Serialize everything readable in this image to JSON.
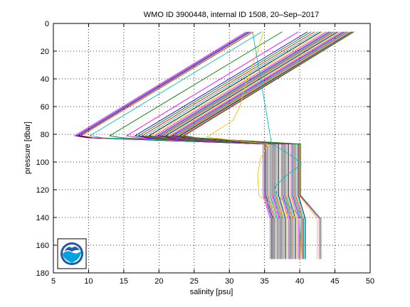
{
  "chart_data": {
    "type": "line",
    "title": "WMO ID 3900448, internal ID 1508, 20–Sep–2017",
    "xlabel": "salinity [psu]",
    "ylabel": "pressure [dbar]",
    "xlim": [
      5,
      50
    ],
    "ylim": [
      0,
      180
    ],
    "y_reversed": true,
    "grid": true,
    "xticks": [
      "5",
      "10",
      "15",
      "20",
      "25",
      "30",
      "35",
      "40",
      "45",
      "50"
    ],
    "yticks": [
      "0",
      "20",
      "40",
      "60",
      "80",
      "100",
      "120",
      "140",
      "160",
      "180"
    ],
    "logo": "noaa-logo",
    "series": [
      {
        "color": "#ff00ff",
        "points": [
          [
            32.4,
            6
          ],
          [
            8.0,
            81
          ],
          [
            9.8,
            82.5
          ],
          [
            34.8,
            87
          ],
          [
            34.8,
            124
          ],
          [
            35.8,
            141
          ],
          [
            35.8,
            170
          ]
        ]
      },
      {
        "color": "#0000ff",
        "points": [
          [
            32.7,
            6
          ],
          [
            8.3,
            81
          ],
          [
            10.1,
            82.5
          ],
          [
            35.0,
            87
          ],
          [
            35.0,
            124
          ],
          [
            36.0,
            141
          ],
          [
            36.0,
            170
          ]
        ]
      },
      {
        "color": "#000000",
        "points": [
          [
            33.0,
            6
          ],
          [
            8.6,
            81
          ],
          [
            10.4,
            82.5
          ],
          [
            35.2,
            87
          ],
          [
            35.2,
            124
          ],
          [
            36.2,
            141
          ],
          [
            36.2,
            170
          ]
        ]
      },
      {
        "color": "#ff0000",
        "points": [
          [
            33.4,
            6
          ],
          [
            8.9,
            81
          ],
          [
            10.7,
            82.5
          ],
          [
            35.4,
            87
          ],
          [
            35.4,
            124
          ],
          [
            36.4,
            141
          ],
          [
            36.4,
            170
          ]
        ]
      },
      {
        "color": "#00bfbf",
        "points": [
          [
            34.6,
            6
          ],
          [
            10.2,
            81
          ],
          [
            12.0,
            82.5
          ],
          [
            35.6,
            87
          ],
          [
            35.6,
            124
          ],
          [
            36.6,
            141
          ],
          [
            36.6,
            170
          ]
        ]
      },
      {
        "color": "#008000",
        "points": [
          [
            37.5,
            6
          ],
          [
            13.0,
            81
          ],
          [
            14.8,
            82.5
          ],
          [
            35.8,
            87
          ],
          [
            35.8,
            124
          ],
          [
            36.8,
            141
          ],
          [
            36.8,
            170
          ]
        ]
      },
      {
        "color": "#ff00ff",
        "points": [
          [
            39.8,
            6
          ],
          [
            15.4,
            81
          ],
          [
            17.2,
            82.5
          ],
          [
            36.0,
            87
          ],
          [
            36.0,
            124
          ],
          [
            37.0,
            141
          ],
          [
            37.0,
            170
          ]
        ]
      },
      {
        "color": "#0000ff",
        "points": [
          [
            41.1,
            6
          ],
          [
            16.6,
            81
          ],
          [
            18.4,
            82.5
          ],
          [
            36.2,
            87
          ],
          [
            36.2,
            124
          ],
          [
            37.2,
            141
          ],
          [
            37.2,
            170
          ]
        ]
      },
      {
        "color": "#008000",
        "points": [
          [
            41.6,
            6
          ],
          [
            17.1,
            81
          ],
          [
            18.9,
            82.5
          ],
          [
            36.4,
            87
          ],
          [
            36.4,
            124
          ],
          [
            37.4,
            141
          ],
          [
            37.4,
            170
          ]
        ]
      },
      {
        "color": "#ff0000",
        "points": [
          [
            42.1,
            6
          ],
          [
            17.6,
            81
          ],
          [
            19.4,
            82.5
          ],
          [
            36.6,
            87
          ],
          [
            36.6,
            124
          ],
          [
            37.6,
            141
          ],
          [
            37.6,
            170
          ]
        ]
      },
      {
        "color": "#00bfbf",
        "points": [
          [
            42.6,
            6
          ],
          [
            18.1,
            81
          ],
          [
            19.9,
            82.5
          ],
          [
            36.8,
            87
          ],
          [
            36.8,
            124
          ],
          [
            37.8,
            141
          ],
          [
            37.8,
            170
          ]
        ]
      },
      {
        "color": "#000000",
        "points": [
          [
            43.0,
            6
          ],
          [
            18.6,
            81
          ],
          [
            20.4,
            82.5
          ],
          [
            37.0,
            87
          ],
          [
            37.0,
            124
          ],
          [
            38.0,
            141
          ],
          [
            38.0,
            170
          ]
        ]
      },
      {
        "color": "#ffbf00",
        "points": [
          [
            43.4,
            6
          ],
          [
            19.0,
            81
          ],
          [
            20.8,
            82.5
          ],
          [
            37.2,
            87
          ],
          [
            37.2,
            124
          ],
          [
            38.2,
            141
          ],
          [
            38.2,
            170
          ]
        ]
      },
      {
        "color": "#ff00ff",
        "points": [
          [
            43.8,
            6
          ],
          [
            19.4,
            81
          ],
          [
            21.2,
            82.5
          ],
          [
            37.4,
            87
          ],
          [
            37.4,
            124
          ],
          [
            38.4,
            141
          ],
          [
            38.4,
            170
          ]
        ]
      },
      {
        "color": "#0000ff",
        "points": [
          [
            44.2,
            6
          ],
          [
            19.8,
            81
          ],
          [
            21.6,
            82.5
          ],
          [
            37.6,
            87
          ],
          [
            37.6,
            124
          ],
          [
            38.6,
            141
          ],
          [
            38.6,
            170
          ]
        ]
      },
      {
        "color": "#008000",
        "points": [
          [
            44.5,
            6
          ],
          [
            20.1,
            81
          ],
          [
            21.9,
            82.5
          ],
          [
            37.8,
            87
          ],
          [
            37.8,
            124
          ],
          [
            38.8,
            141
          ],
          [
            38.8,
            170
          ]
        ]
      },
      {
        "color": "#ff0000",
        "points": [
          [
            44.8,
            6
          ],
          [
            20.4,
            81
          ],
          [
            22.2,
            82.5
          ],
          [
            38.0,
            87
          ],
          [
            38.0,
            124
          ],
          [
            39.0,
            141
          ],
          [
            39.0,
            170
          ]
        ]
      },
      {
        "color": "#00bfbf",
        "points": [
          [
            45.1,
            6
          ],
          [
            20.7,
            81
          ],
          [
            22.5,
            82.5
          ],
          [
            38.2,
            87
          ],
          [
            38.2,
            124
          ],
          [
            39.2,
            141
          ],
          [
            39.2,
            170
          ]
        ]
      },
      {
        "color": "#000000",
        "points": [
          [
            45.4,
            6
          ],
          [
            21.0,
            81
          ],
          [
            22.8,
            82.5
          ],
          [
            38.4,
            87
          ],
          [
            38.4,
            124
          ],
          [
            39.4,
            141
          ],
          [
            39.4,
            170
          ]
        ]
      },
      {
        "color": "#ffbf00",
        "points": [
          [
            45.7,
            6
          ],
          [
            21.3,
            81
          ],
          [
            23.1,
            82.5
          ],
          [
            38.6,
            87
          ],
          [
            38.6,
            124
          ],
          [
            39.6,
            141
          ],
          [
            39.6,
            170
          ]
        ]
      },
      {
        "color": "#ff00ff",
        "points": [
          [
            46.0,
            6
          ],
          [
            21.6,
            81
          ],
          [
            23.4,
            82.5
          ],
          [
            38.8,
            87
          ],
          [
            38.8,
            124
          ],
          [
            39.8,
            141
          ],
          [
            39.8,
            170
          ]
        ]
      },
      {
        "color": "#0000ff",
        "points": [
          [
            46.3,
            6
          ],
          [
            21.9,
            81
          ],
          [
            23.7,
            82.5
          ],
          [
            39.0,
            87
          ],
          [
            39.0,
            124
          ],
          [
            40.0,
            141
          ],
          [
            40.0,
            170
          ]
        ]
      },
      {
        "color": "#008000",
        "points": [
          [
            46.6,
            6
          ],
          [
            22.2,
            81
          ],
          [
            24.0,
            82.5
          ],
          [
            39.2,
            87
          ],
          [
            39.2,
            124
          ],
          [
            40.2,
            141
          ],
          [
            40.2,
            170
          ]
        ]
      },
      {
        "color": "#ff0000",
        "points": [
          [
            46.9,
            6
          ],
          [
            22.5,
            81
          ],
          [
            24.3,
            82.5
          ],
          [
            39.4,
            87
          ],
          [
            39.4,
            124
          ],
          [
            40.4,
            141
          ],
          [
            40.4,
            170
          ]
        ]
      },
      {
        "color": "#00bfbf",
        "points": [
          [
            47.2,
            6
          ],
          [
            22.8,
            81
          ],
          [
            24.6,
            82.5
          ],
          [
            39.6,
            87
          ],
          [
            39.6,
            124
          ],
          [
            40.6,
            141
          ],
          [
            40.6,
            170
          ]
        ]
      },
      {
        "color": "#000000",
        "points": [
          [
            47.4,
            6
          ],
          [
            23.0,
            81
          ],
          [
            24.8,
            82.5
          ],
          [
            39.8,
            87
          ],
          [
            39.8,
            124
          ],
          [
            40.8,
            141
          ],
          [
            40.8,
            170
          ]
        ]
      },
      {
        "color": "#ffbf00",
        "points": [
          [
            47.5,
            6
          ],
          [
            23.2,
            81
          ],
          [
            25.0,
            82.5
          ],
          [
            39.9,
            87
          ],
          [
            39.9,
            124
          ],
          [
            42.5,
            141
          ],
          [
            42.5,
            170
          ]
        ]
      },
      {
        "color": "#ff00ff",
        "points": [
          [
            47.6,
            6
          ],
          [
            23.4,
            81
          ],
          [
            25.2,
            82.5
          ],
          [
            40.0,
            87
          ],
          [
            40.0,
            124
          ],
          [
            42.8,
            141
          ],
          [
            42.8,
            170
          ]
        ]
      },
      {
        "color": "#008000",
        "points": [
          [
            47.7,
            6
          ],
          [
            23.6,
            81
          ],
          [
            25.4,
            82.5
          ],
          [
            40.1,
            87
          ],
          [
            40.1,
            124
          ],
          [
            43.0,
            141
          ],
          [
            43.0,
            170
          ]
        ]
      },
      {
        "color": "#ffbf00",
        "points": [
          [
            34.8,
            6
          ],
          [
            34.0,
            20
          ],
          [
            32.5,
            40
          ],
          [
            31.5,
            60
          ],
          [
            30.5,
            70
          ],
          [
            26.8,
            82
          ],
          [
            35.5,
            87
          ],
          [
            34.4,
            98
          ],
          [
            34.0,
            110
          ],
          [
            34.2,
            124
          ],
          [
            36.5,
            134
          ],
          [
            40.0,
            141
          ],
          [
            40.2,
            170
          ]
        ]
      },
      {
        "color": "#00bfbf",
        "points": [
          [
            33.3,
            6
          ],
          [
            36.0,
            87
          ],
          [
            37.8,
            92
          ],
          [
            39.5,
            98
          ],
          [
            40.2,
            102
          ],
          [
            38.0,
            110
          ],
          [
            36.5,
            118
          ],
          [
            36.8,
            124
          ],
          [
            40.5,
            141
          ],
          [
            40.5,
            170
          ]
        ]
      }
    ]
  }
}
